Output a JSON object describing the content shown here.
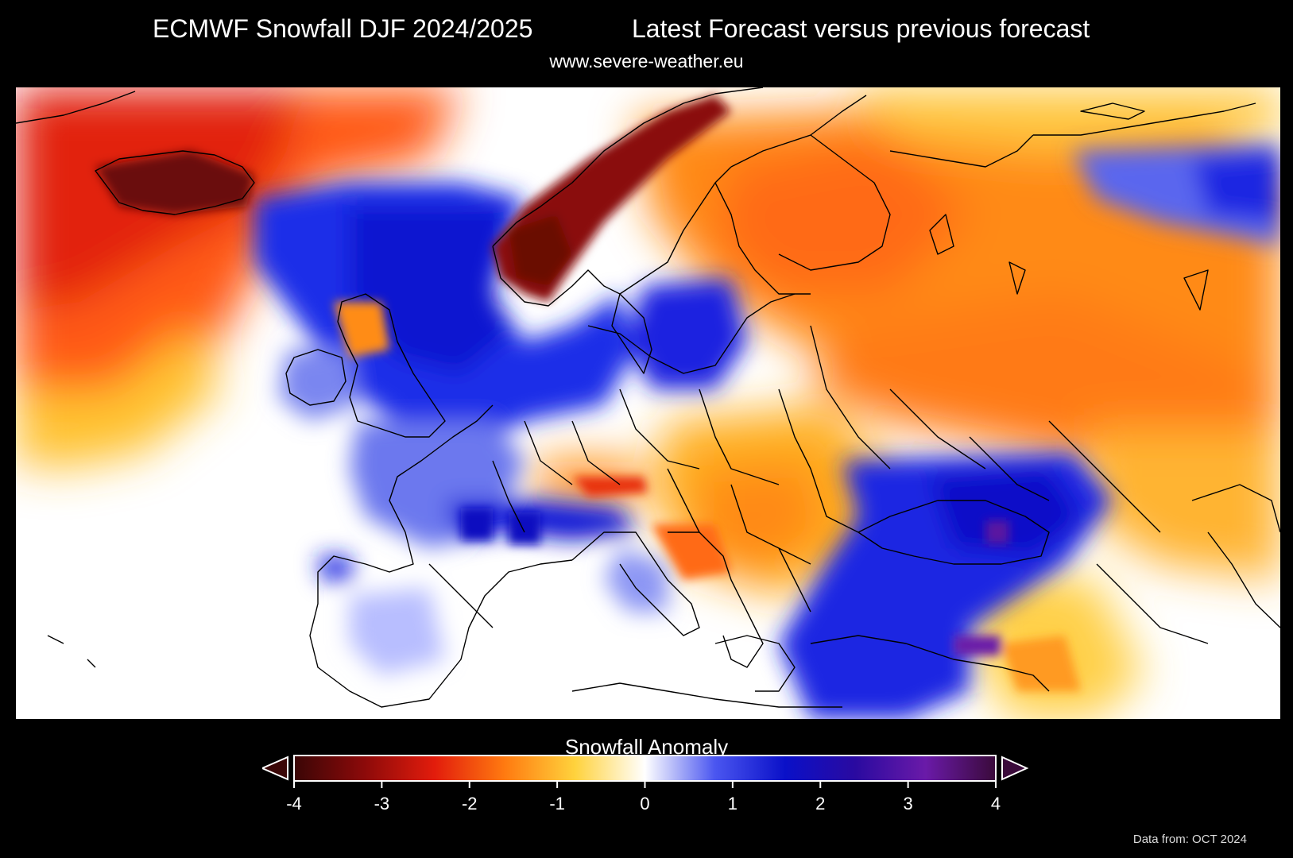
{
  "header": {
    "title_left": "ECMWF Snowfall DJF 2024/2025",
    "title_right": "Latest Forecast versus previous forecast",
    "subtitle": "www.severe-weather.eu"
  },
  "colorbar": {
    "title": "Snowfall Anomaly",
    "min": -4,
    "max": 4,
    "tick_values": [
      -4,
      -3,
      -2,
      -1,
      0,
      1,
      2,
      3,
      4
    ],
    "tick_labels": [
      "-4",
      "-3",
      "-2",
      "-1",
      "0",
      "1",
      "2",
      "3",
      "4"
    ],
    "extend": "both",
    "colors": [
      "#3a0606",
      "#8c0a0a",
      "#e21c0c",
      "#ff7a10",
      "#ffd23c",
      "#ffffff",
      "#4a56f0",
      "#0a10c8",
      "#2a0aa0",
      "#6a1aa8",
      "#3a0a3a"
    ]
  },
  "credit": "Data from: OCT 2024"
}
